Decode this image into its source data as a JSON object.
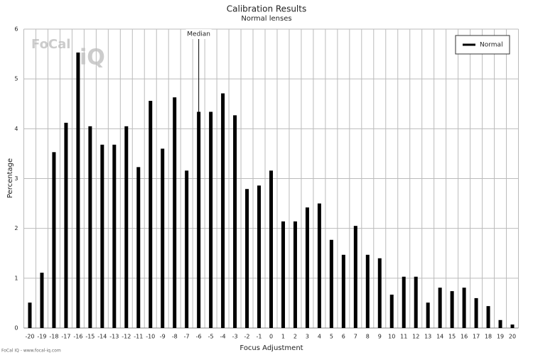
{
  "chart_data": {
    "type": "bar",
    "title": "Calibration Results",
    "subtitle": "Normal lenses",
    "x_label": "Focus Adjustment",
    "y_label": "Percentage",
    "categories": [
      "-20",
      "-19",
      "-18",
      "-17",
      "-16",
      "-15",
      "-14",
      "-13",
      "-12",
      "-11",
      "-10",
      "-9",
      "-8",
      "-7",
      "-6",
      "-5",
      "-4",
      "-3",
      "-2",
      "-1",
      "0",
      "1",
      "2",
      "3",
      "4",
      "5",
      "6",
      "7",
      "8",
      "9",
      "10",
      "11",
      "12",
      "13",
      "14",
      "15",
      "16",
      "17",
      "18",
      "19",
      "20"
    ],
    "series": [
      {
        "name": "Normal",
        "color": "#000000",
        "values": [
          0.51,
          1.11,
          3.53,
          4.12,
          5.53,
          4.05,
          3.68,
          3.68,
          4.05,
          3.23,
          4.56,
          3.6,
          4.63,
          3.16,
          4.34,
          4.34,
          4.71,
          4.27,
          2.79,
          2.86,
          3.16,
          2.14,
          2.14,
          2.42,
          2.5,
          1.77,
          1.47,
          2.05,
          1.47,
          1.4,
          0.67,
          1.03,
          1.03,
          0.51,
          0.81,
          0.74,
          0.81,
          0.6,
          0.44,
          0.16,
          0.07
        ]
      }
    ],
    "ylim": [
      0,
      6
    ],
    "yticks": [
      0,
      1,
      2,
      3,
      4,
      5,
      6
    ],
    "grid": true,
    "legend": "top-right",
    "median": {
      "label": "Median",
      "category": "-6"
    },
    "logo_text": "FoCal",
    "logo_mark": "iQ",
    "footer": "FoCal IQ - www.focal-iq.com"
  }
}
